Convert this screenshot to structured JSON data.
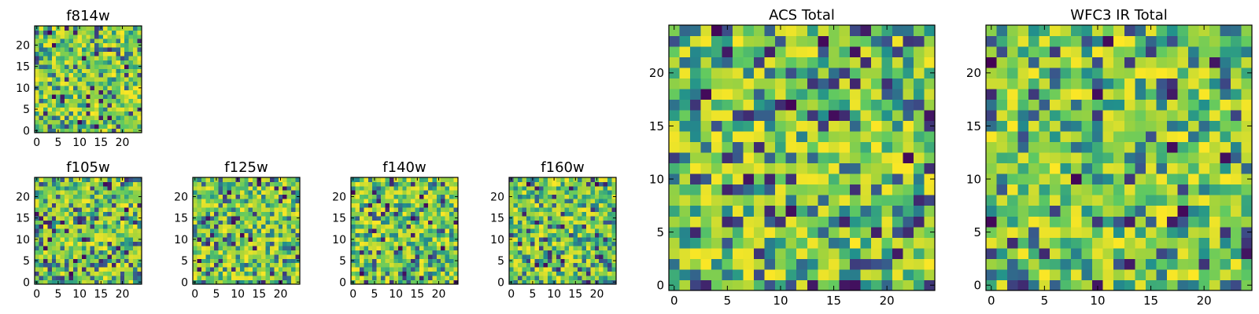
{
  "figure": {
    "colormap": [
      "#440154",
      "#3b528b",
      "#21918c",
      "#5ec962",
      "#a6d43a",
      "#fde725"
    ]
  },
  "chart_data": [
    {
      "type": "heatmap",
      "title": "f814w",
      "grid": [
        25,
        25
      ],
      "seed": 11,
      "xticks": [
        0,
        5,
        10,
        15,
        20
      ],
      "yticks": [
        0,
        5,
        10,
        15,
        20
      ],
      "xlim": [
        -0.5,
        24.5
      ],
      "ylim": [
        -0.5,
        24.5
      ]
    },
    {
      "type": "heatmap",
      "title": "f105w",
      "grid": [
        25,
        25
      ],
      "seed": 23,
      "xticks": [
        0,
        5,
        10,
        15,
        20
      ],
      "yticks": [
        0,
        5,
        10,
        15,
        20
      ],
      "xlim": [
        -0.5,
        24.5
      ],
      "ylim": [
        -0.5,
        24.5
      ]
    },
    {
      "type": "heatmap",
      "title": "f125w",
      "grid": [
        25,
        25
      ],
      "seed": 37,
      "xticks": [
        0,
        5,
        10,
        15,
        20
      ],
      "yticks": [
        0,
        5,
        10,
        15,
        20
      ],
      "xlim": [
        -0.5,
        24.5
      ],
      "ylim": [
        -0.5,
        24.5
      ]
    },
    {
      "type": "heatmap",
      "title": "f140w",
      "grid": [
        25,
        25
      ],
      "seed": 41,
      "xticks": [
        0,
        5,
        10,
        15,
        20
      ],
      "yticks": [
        0,
        5,
        10,
        15,
        20
      ],
      "xlim": [
        -0.5,
        24.5
      ],
      "ylim": [
        -0.5,
        24.5
      ]
    },
    {
      "type": "heatmap",
      "title": "f160w",
      "grid": [
        25,
        25
      ],
      "seed": 53,
      "xticks": [
        0,
        5,
        10,
        15,
        20
      ],
      "yticks": [
        0,
        5,
        10,
        15,
        20
      ],
      "xlim": [
        -0.5,
        24.5
      ],
      "ylim": [
        -0.5,
        24.5
      ]
    },
    {
      "type": "heatmap",
      "title": "ACS Total",
      "grid": [
        25,
        25
      ],
      "seed": 67,
      "xticks": [
        0,
        5,
        10,
        15,
        20
      ],
      "yticks": [
        0,
        5,
        10,
        15,
        20
      ],
      "xlim": [
        -0.5,
        24.5
      ],
      "ylim": [
        -0.5,
        24.5
      ]
    },
    {
      "type": "heatmap",
      "title": "WFC3 IR Total",
      "grid": [
        25,
        25
      ],
      "seed": 79,
      "xticks": [
        0,
        5,
        10,
        15,
        20
      ],
      "yticks": [
        0,
        5,
        10,
        15,
        20
      ],
      "xlim": [
        -0.5,
        24.5
      ],
      "ylim": [
        -0.5,
        24.5
      ]
    }
  ]
}
